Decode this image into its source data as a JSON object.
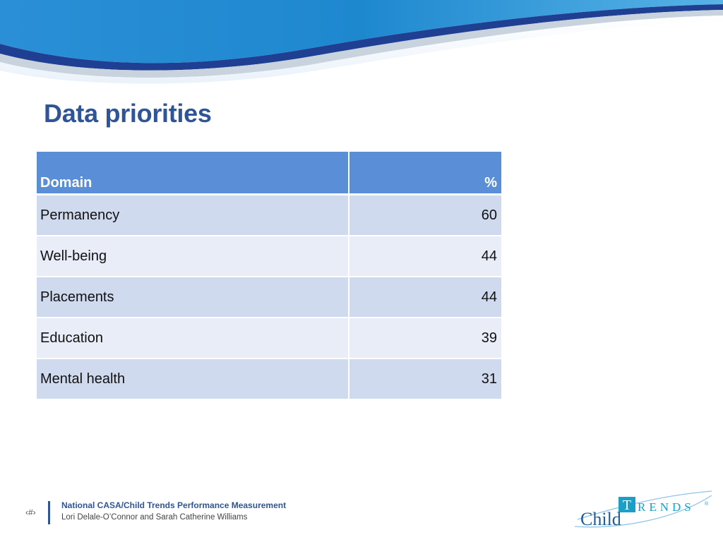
{
  "slide": {
    "title": "Data priorities"
  },
  "table": {
    "headers": {
      "domain": "Domain",
      "percent": "%"
    },
    "rows": [
      {
        "domain": "Permanency",
        "percent": "60"
      },
      {
        "domain": "Well-being",
        "percent": "44"
      },
      {
        "domain": "Placements",
        "percent": "44"
      },
      {
        "domain": "Education",
        "percent": "39"
      },
      {
        "domain": "Mental health",
        "percent": "31"
      }
    ]
  },
  "footer": {
    "page_number": "‹#›",
    "line1": "National CASA/Child Trends Performance Measurement",
    "line2": "Lori Delale-O’Connor and Sarah Catherine Williams"
  },
  "logo": {
    "word1": "Child",
    "word2_initial": "T",
    "word2_rest": "RENDS",
    "mark": "®"
  },
  "colors": {
    "title": "#2f5597",
    "header_fill": "#5a8fd8",
    "row_dark": "#cfdaef",
    "row_light": "#e9edf7",
    "banner_blue": "#1e88cf",
    "logo_teal": "#1aa0c8"
  }
}
